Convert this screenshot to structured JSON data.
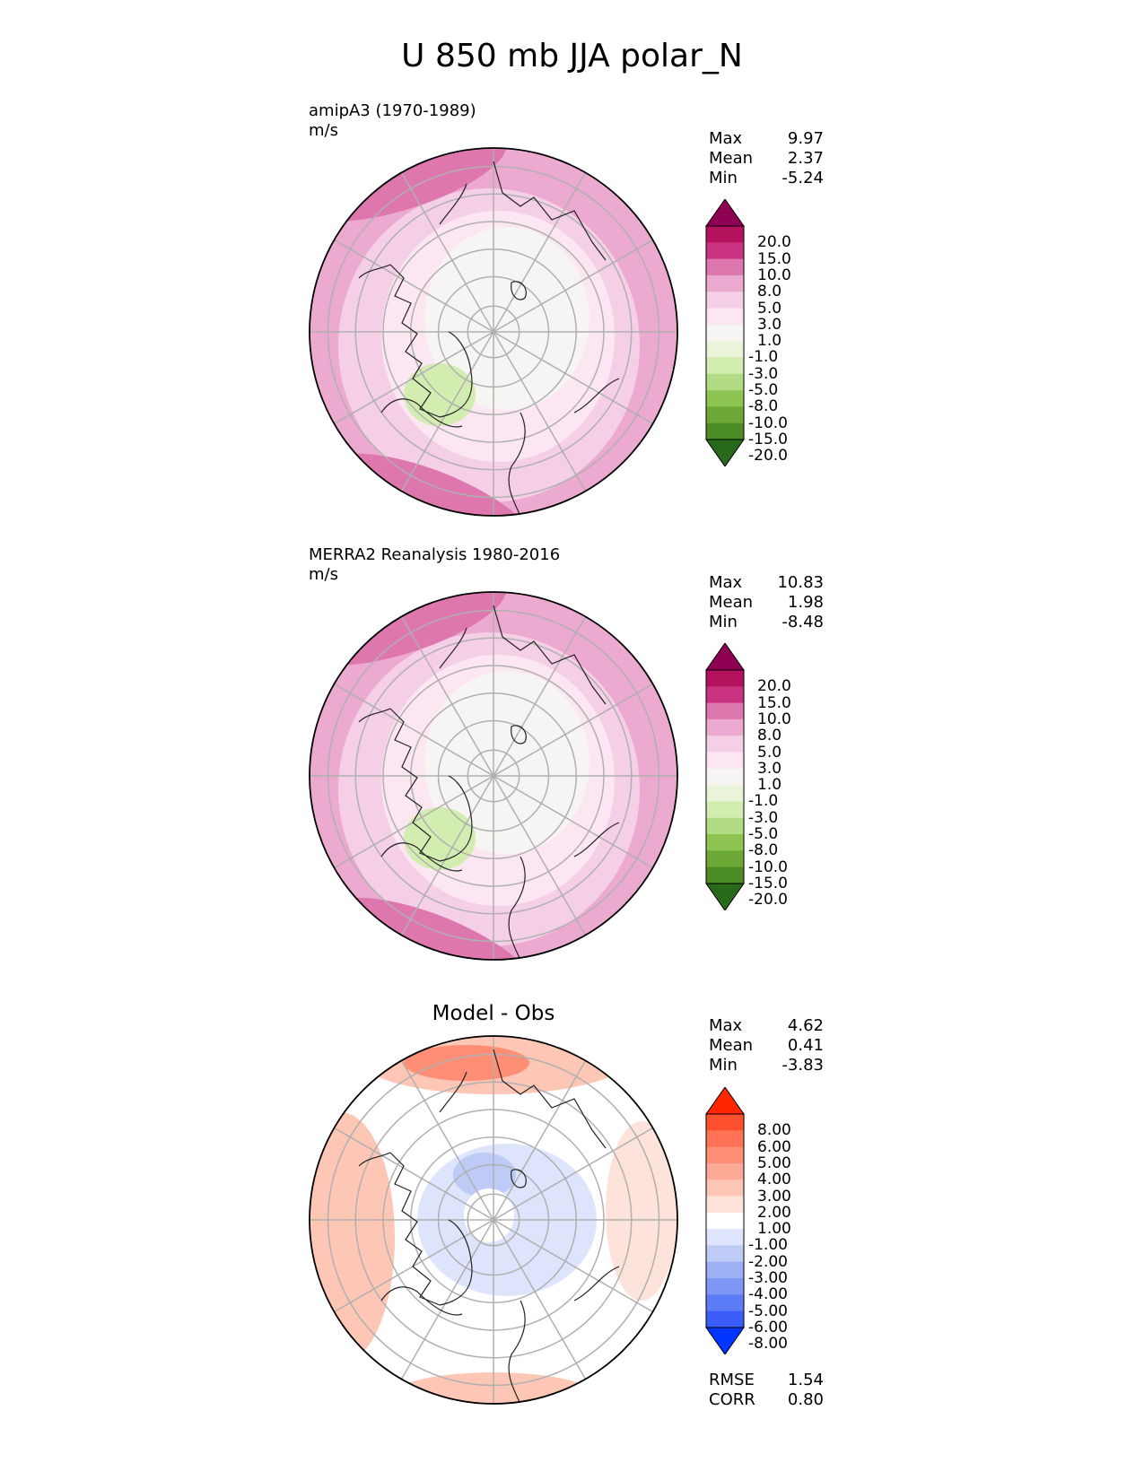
{
  "chart_data": {
    "type": "heatmap",
    "title": "U 850 mb JJA polar_N",
    "panels": [
      {
        "id": "test",
        "title": "amipA3 (1970-1989)",
        "units": "m/s",
        "stats": [
          {
            "label": "Max",
            "value": "9.97"
          },
          {
            "label": "Mean",
            "value": "2.37"
          },
          {
            "label": "Min",
            "value": "-5.24"
          }
        ],
        "colorbar": {
          "levels": [
            "20.0",
            "15.0",
            "10.0",
            "8.0",
            "5.0",
            "3.0",
            "1.0",
            "-1.0",
            "-3.0",
            "-5.0",
            "-8.0",
            "-10.0",
            "-15.0",
            "-20.0"
          ],
          "colors": [
            "#8e0152",
            "#b5125e",
            "#c9327f",
            "#de77ae",
            "#ecaad0",
            "#f5cfe6",
            "#fbe6f1",
            "#f6f5f3",
            "#e9f4d8",
            "#d3ecb0",
            "#b2dc83",
            "#8ec552",
            "#6ba836",
            "#4a8b23",
            "#286a19"
          ]
        }
      },
      {
        "id": "reference",
        "title": "MERRA2 Reanalysis 1980-2016",
        "units": "m/s",
        "stats": [
          {
            "label": "Max",
            "value": "10.83"
          },
          {
            "label": "Mean",
            "value": "1.98"
          },
          {
            "label": "Min",
            "value": "-8.48"
          }
        ],
        "colorbar": {
          "levels": [
            "20.0",
            "15.0",
            "10.0",
            "8.0",
            "5.0",
            "3.0",
            "1.0",
            "-1.0",
            "-3.0",
            "-5.0",
            "-8.0",
            "-10.0",
            "-15.0",
            "-20.0"
          ],
          "colors": [
            "#8e0152",
            "#b5125e",
            "#c9327f",
            "#de77ae",
            "#ecaad0",
            "#f5cfe6",
            "#fbe6f1",
            "#f6f5f3",
            "#e9f4d8",
            "#d3ecb0",
            "#b2dc83",
            "#8ec552",
            "#6ba836",
            "#4a8b23",
            "#286a19"
          ]
        }
      },
      {
        "id": "difference",
        "title": "Model - Obs",
        "units": "",
        "stats": [
          {
            "label": "Max",
            "value": "4.62"
          },
          {
            "label": "Mean",
            "value": "0.41"
          },
          {
            "label": "Min",
            "value": "-3.83"
          }
        ],
        "metrics": [
          {
            "label": "RMSE",
            "value": "1.54"
          },
          {
            "label": "CORR",
            "value": "0.80"
          }
        ],
        "colorbar": {
          "levels": [
            "8.00",
            "6.00",
            "5.00",
            "4.00",
            "3.00",
            "2.00",
            "1.00",
            "-1.00",
            "-2.00",
            "-3.00",
            "-4.00",
            "-5.00",
            "-6.00",
            "-8.00"
          ],
          "colors": [
            "#ff2600",
            "#ff5030",
            "#ff7255",
            "#ff8e75",
            "#fcaa95",
            "#fdc6b5",
            "#fde3da",
            "#ffffff",
            "#dde4fb",
            "#bfcbf7",
            "#9db0f5",
            "#7e97f7",
            "#5d7cf8",
            "#3a5dfa",
            "#0036ff"
          ]
        }
      }
    ]
  }
}
